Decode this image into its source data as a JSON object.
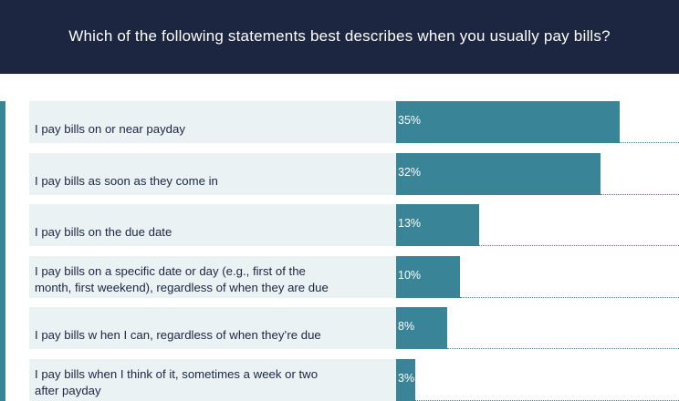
{
  "title": "Which of the following statements best describes when you usually pay bills?",
  "chart_data": {
    "type": "bar",
    "orientation": "horizontal",
    "title": "Which of the following statements best describes when you usually pay bills?",
    "categories": [
      "I pay bills on or near payday",
      "I pay bills as soon as they come in",
      "I pay bills on the due date",
      "I pay bills on a specific date or day (e.g., first of the month, first weekend), regardless of when they are due",
      "I pay bills w hen I can, regardless of when they’re due",
      "I pay bills when I think of it, sometimes a week or two after payday"
    ],
    "values": [
      35,
      32,
      13,
      10,
      8,
      3
    ],
    "value_labels": [
      "35%",
      "32%",
      "13%",
      "10%",
      "8%",
      "3%"
    ],
    "unit": "%",
    "colors": {
      "bar": "#3a8497",
      "label_background": "#eaf2f4",
      "header_background": "#1c2640",
      "text": "#1c2640"
    }
  }
}
